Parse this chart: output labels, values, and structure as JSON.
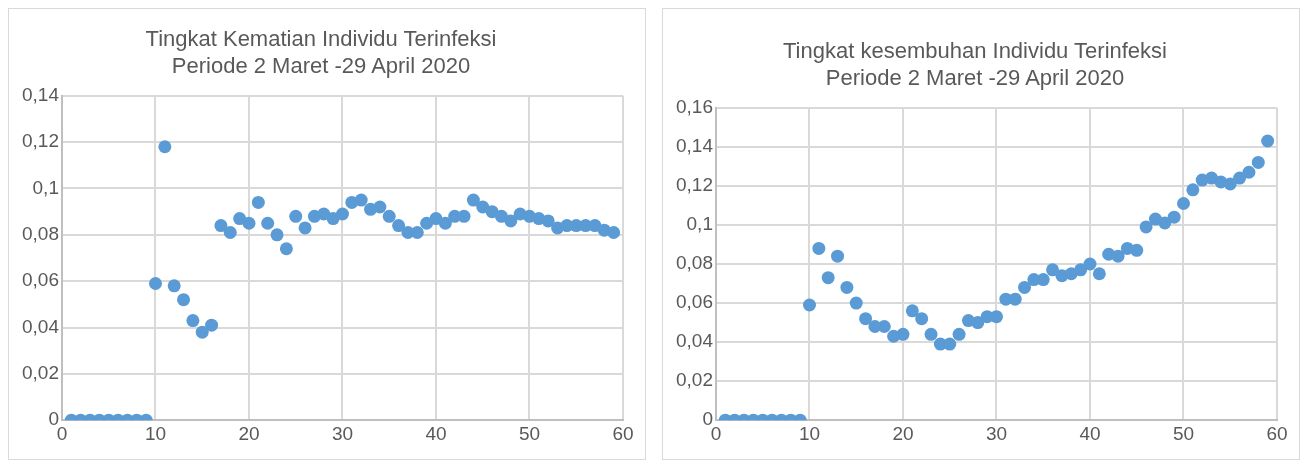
{
  "chart_data": [
    {
      "type": "scatter",
      "title": "Tingkat Kematian Individu Terinfeksi\nPeriode 2 Maret -29 April 2020",
      "x": [
        1,
        2,
        3,
        4,
        5,
        6,
        7,
        8,
        9,
        10,
        11,
        12,
        13,
        14,
        15,
        16,
        17,
        18,
        19,
        20,
        21,
        22,
        23,
        24,
        25,
        26,
        27,
        28,
        29,
        30,
        31,
        32,
        33,
        34,
        35,
        36,
        37,
        38,
        39,
        40,
        41,
        42,
        43,
        44,
        45,
        46,
        47,
        48,
        49,
        50,
        51,
        52,
        53,
        54,
        55,
        56,
        57,
        58,
        59
      ],
      "series": [
        {
          "color": "#5b9bd5",
          "values": [
            0,
            0,
            0,
            0,
            0,
            0,
            0,
            0,
            0,
            0.059,
            0.118,
            0.058,
            0.052,
            0.043,
            0.038,
            0.041,
            0.084,
            0.081,
            0.087,
            0.085,
            0.094,
            0.085,
            0.08,
            0.074,
            0.088,
            0.083,
            0.088,
            0.089,
            0.087,
            0.089,
            0.094,
            0.095,
            0.091,
            0.092,
            0.088,
            0.084,
            0.081,
            0.081,
            0.085,
            0.087,
            0.085,
            0.088,
            0.088,
            0.095,
            0.092,
            0.09,
            0.088,
            0.086,
            0.089,
            0.088,
            0.087,
            0.086,
            0.083,
            0.084,
            0.084,
            0.084,
            0.084,
            0.082,
            0.081
          ]
        }
      ],
      "xlim": [
        0,
        60
      ],
      "xticks": [
        0,
        10,
        20,
        30,
        40,
        50,
        60
      ],
      "ylim": [
        0,
        0.14
      ],
      "yticks": [
        0,
        {
          "value": 0.02,
          "label": "0,02"
        },
        {
          "value": 0.04,
          "label": "0,04"
        },
        {
          "value": 0.06,
          "label": "0,06"
        },
        {
          "value": 0.08,
          "label": "0,08"
        },
        {
          "value": 0.1,
          "label": "0,1"
        },
        {
          "value": 0.12,
          "label": "0,12"
        },
        {
          "value": 0.14,
          "label": "0,14"
        }
      ],
      "grid": true,
      "legend": false,
      "marker": "circle"
    },
    {
      "type": "scatter",
      "title": "Tingkat kesembuhan Individu Terinfeksi\nPeriode 2 Maret -29 April 2020",
      "x": [
        1,
        2,
        3,
        4,
        5,
        6,
        7,
        8,
        9,
        10,
        11,
        12,
        13,
        14,
        15,
        16,
        17,
        18,
        19,
        20,
        21,
        22,
        23,
        24,
        25,
        26,
        27,
        28,
        29,
        30,
        31,
        32,
        33,
        34,
        35,
        36,
        37,
        38,
        39,
        40,
        41,
        42,
        43,
        44,
        45,
        46,
        47,
        48,
        49,
        50,
        51,
        52,
        53,
        54,
        55,
        56,
        57,
        58,
        59
      ],
      "series": [
        {
          "color": "#5b9bd5",
          "values": [
            0,
            0,
            0,
            0,
            0,
            0,
            0,
            0,
            0,
            0.059,
            0.088,
            0.073,
            0.084,
            0.068,
            0.06,
            0.052,
            0.048,
            0.048,
            0.043,
            0.044,
            0.056,
            0.052,
            0.044,
            0.039,
            0.039,
            0.044,
            0.051,
            0.05,
            0.053,
            0.053,
            0.062,
            0.062,
            0.068,
            0.072,
            0.072,
            0.077,
            0.074,
            0.075,
            0.077,
            0.08,
            0.075,
            0.085,
            0.084,
            0.088,
            0.087,
            0.099,
            0.103,
            0.101,
            0.104,
            0.111,
            0.118,
            0.123,
            0.124,
            0.122,
            0.121,
            0.124,
            0.127,
            0.132,
            0.143
          ]
        }
      ],
      "xlim": [
        0,
        60
      ],
      "xticks": [
        0,
        10,
        20,
        30,
        40,
        50,
        60
      ],
      "ylim": [
        0,
        0.16
      ],
      "yticks": [
        0,
        {
          "value": 0.02,
          "label": "0,02"
        },
        {
          "value": 0.04,
          "label": "0,04"
        },
        {
          "value": 0.06,
          "label": "0,06"
        },
        {
          "value": 0.08,
          "label": "0,08"
        },
        {
          "value": 0.1,
          "label": "0,1"
        },
        {
          "value": 0.12,
          "label": "0,12"
        },
        {
          "value": 0.14,
          "label": "0,14"
        },
        {
          "value": 0.16,
          "label": "0,16"
        }
      ],
      "grid": true,
      "legend": false,
      "marker": "circle"
    }
  ]
}
